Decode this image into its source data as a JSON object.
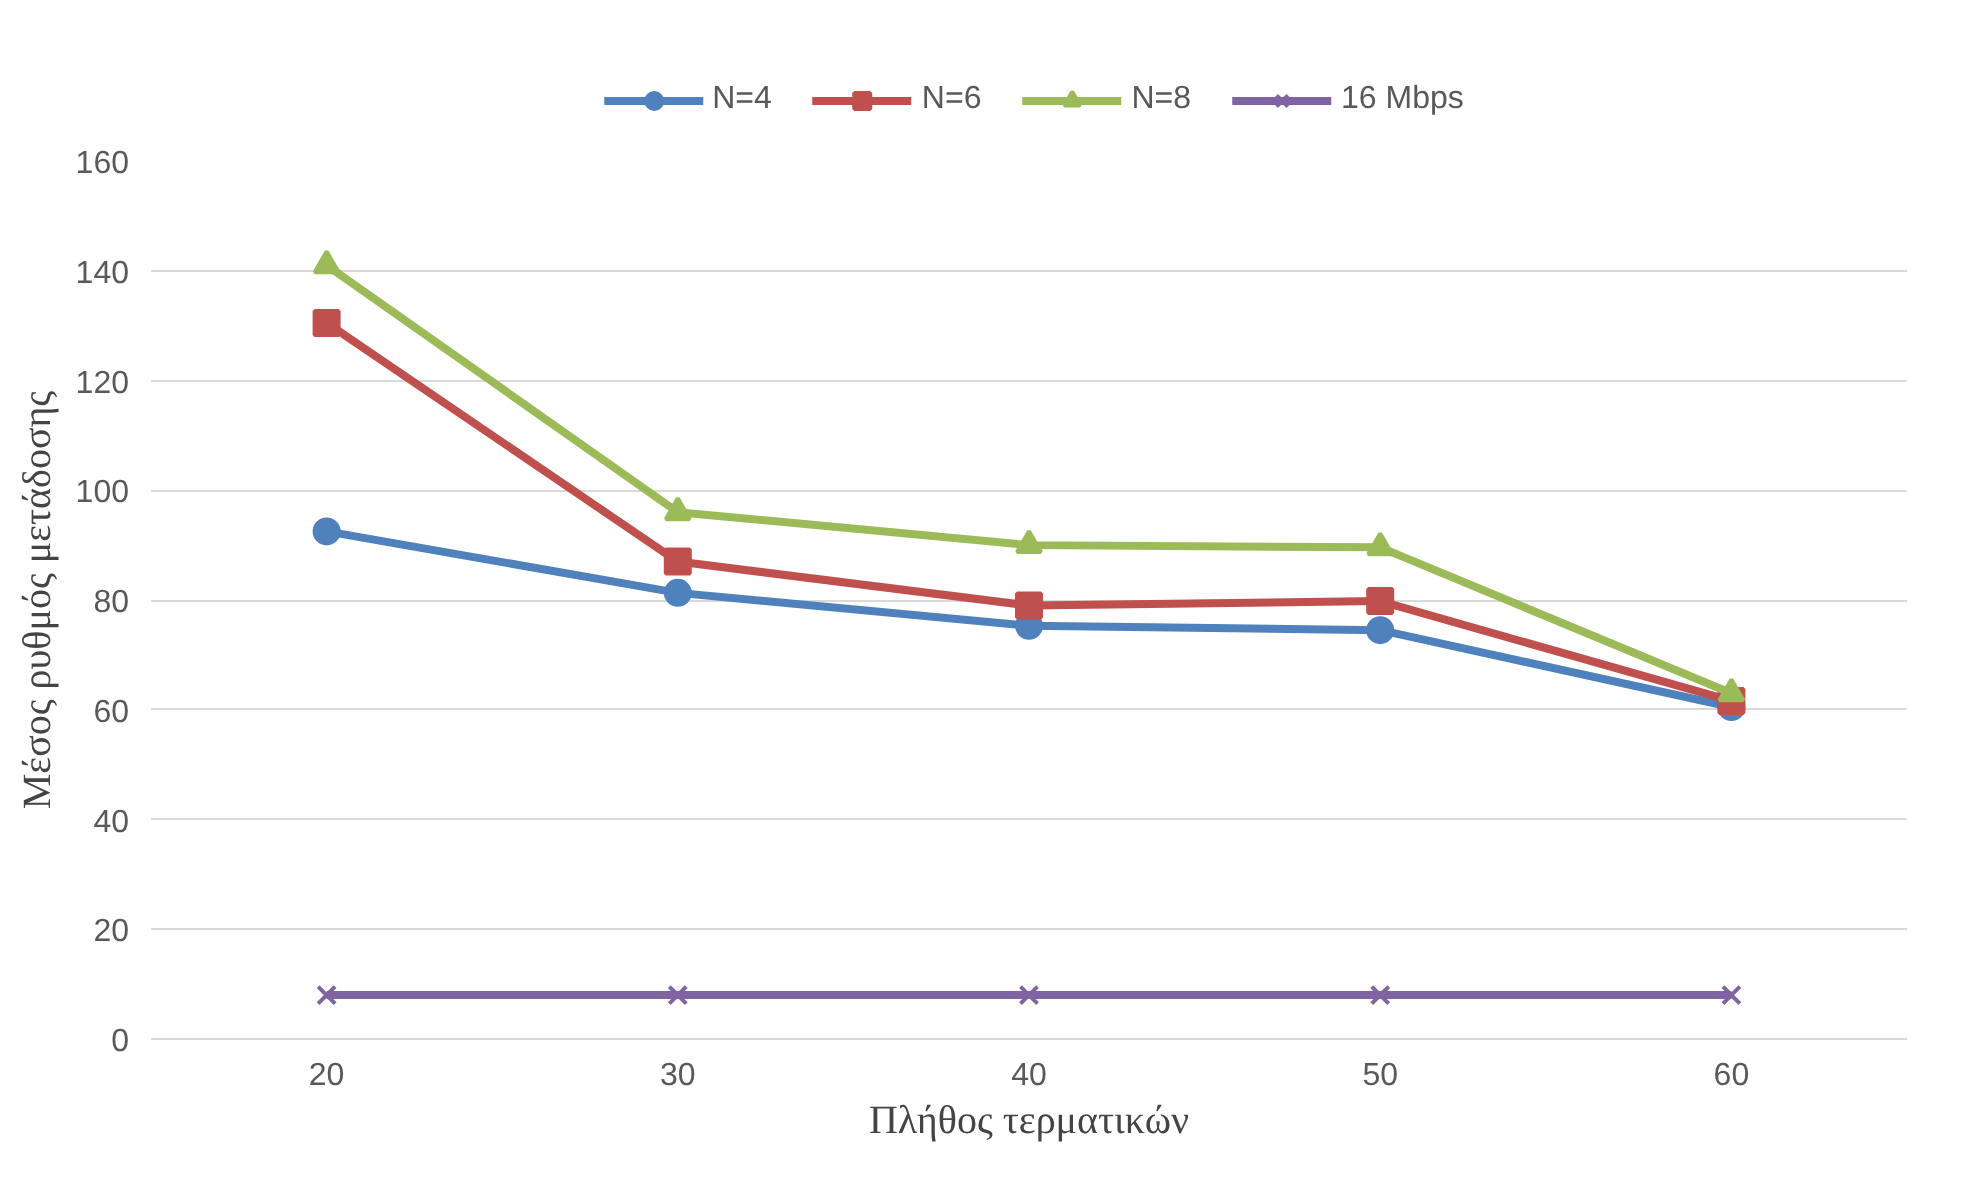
{
  "chart_data": {
    "type": "line",
    "xlabel": "Πλήθος τερματικών",
    "ylabel": "Μέσος ρυθμός μετάδοσης",
    "categories": [
      "20",
      "30",
      "40",
      "50",
      "60"
    ],
    "series": [
      {
        "name": "N=4",
        "color": "#4f81bd",
        "marker": "circle",
        "values": [
          92.5,
          81.3,
          75.3,
          74.5,
          60.5
        ]
      },
      {
        "name": "N=6",
        "color": "#c0504d",
        "marker": "square",
        "values": [
          130.5,
          87,
          79,
          79.8,
          61.6
        ]
      },
      {
        "name": "N=8",
        "color": "#9bbb59",
        "marker": "triangle",
        "values": [
          141,
          96,
          90,
          89.6,
          63
        ]
      },
      {
        "name": "16 Mbps",
        "color": "#8064a2",
        "marker": "cross",
        "values": [
          8,
          8,
          8,
          8,
          8
        ]
      }
    ],
    "ylim": [
      0,
      160
    ],
    "yticks": [
      0,
      20,
      40,
      60,
      80,
      100,
      120,
      140,
      160
    ],
    "grid": "y",
    "legend": "top",
    "line_style": "solid"
  }
}
